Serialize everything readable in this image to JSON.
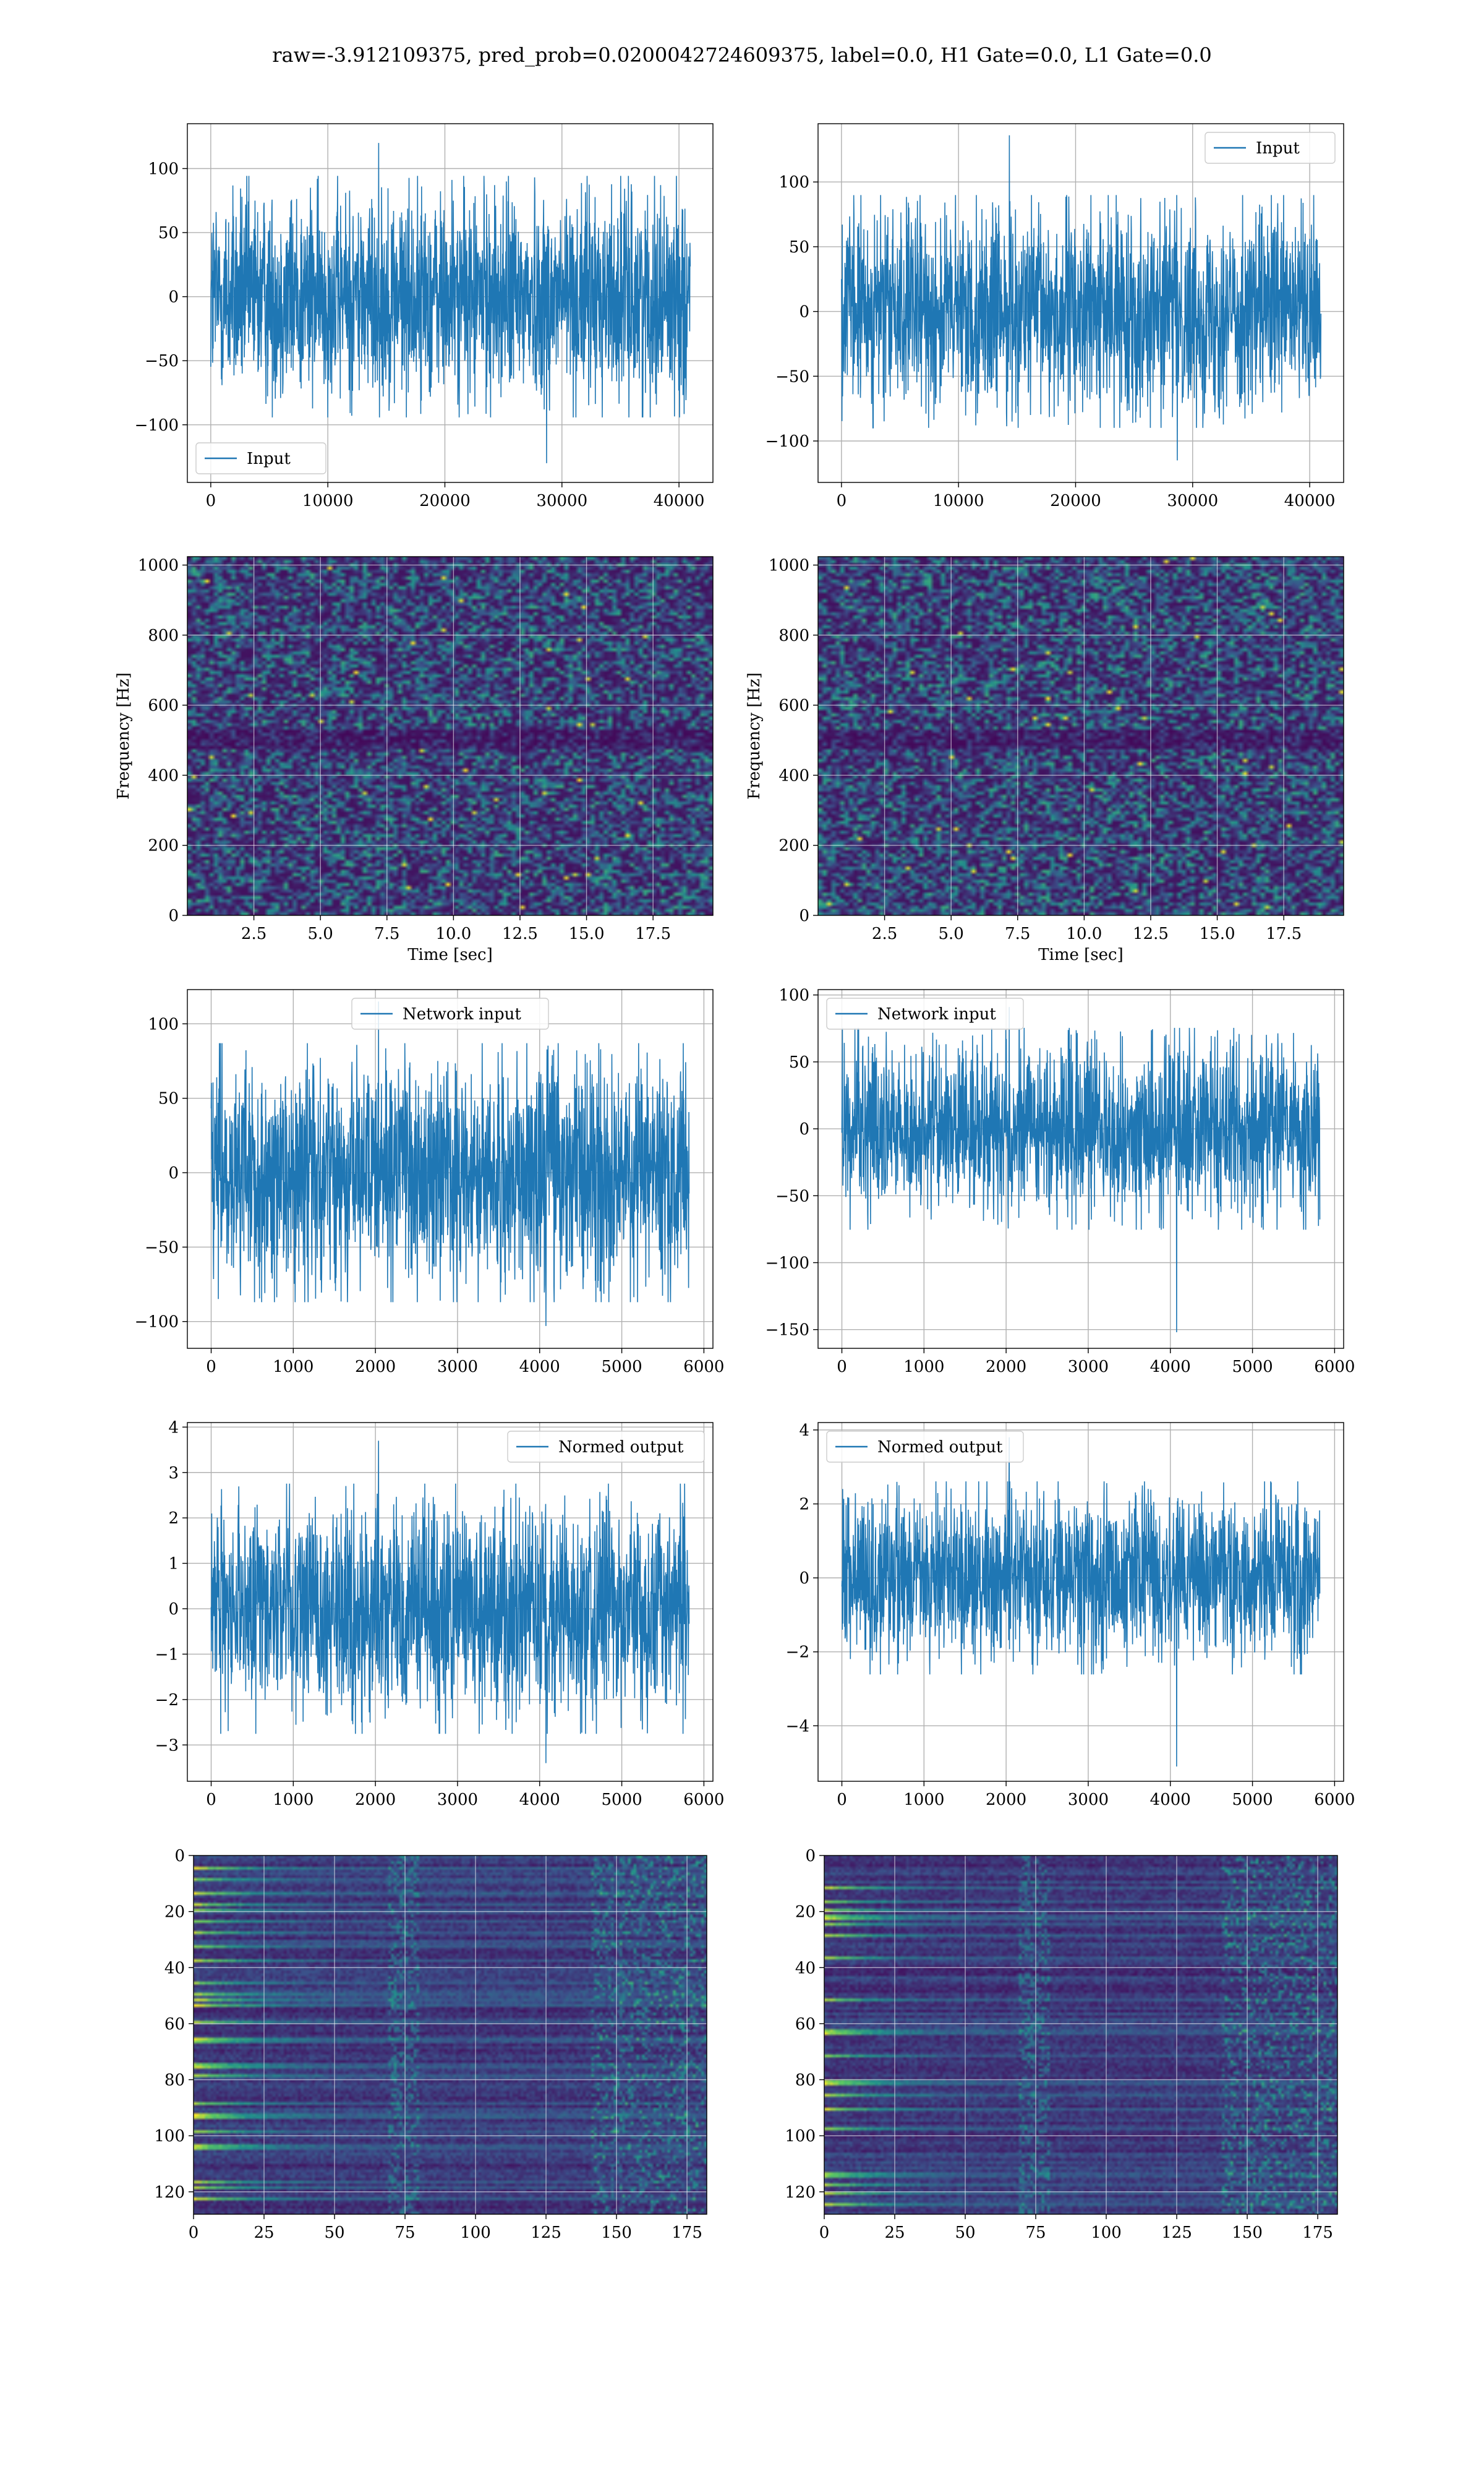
{
  "figure": {
    "title": "raw=-3.912109375, pred_prob=0.0200042724609375, label=0.0, H1 Gate=0.0, L1 Gate=0.0"
  },
  "colors": {
    "series": "#1f77b4",
    "viridis": [
      "#440154",
      "#3b528b",
      "#21918c",
      "#5ec962",
      "#fde725"
    ]
  },
  "chart_data": [
    {
      "type": "line",
      "panel": "row1-left",
      "xlim": [
        -2000,
        42900
      ],
      "ylim": [
        -145,
        135
      ],
      "xticks": [
        0,
        10000,
        20000,
        30000,
        40000
      ],
      "yticks": [
        -100,
        -50,
        0,
        50,
        100
      ],
      "xticklabels": [
        "0",
        "10000",
        "20000",
        "30000",
        "40000"
      ],
      "yticklabels": [
        "−100",
        "−50",
        "0",
        "50",
        "100"
      ],
      "series": [
        {
          "name": "Input",
          "x_range": [
            0,
            40960
          ],
          "typical_amplitude": 65,
          "max": 120,
          "min": -130
        }
      ],
      "legend": "lower left",
      "grid": true
    },
    {
      "type": "line",
      "panel": "row1-right",
      "xlim": [
        -2000,
        42900
      ],
      "ylim": [
        -132,
        145
      ],
      "xticks": [
        0,
        10000,
        20000,
        30000,
        40000
      ],
      "yticks": [
        -100,
        -50,
        0,
        50,
        100
      ],
      "xticklabels": [
        "0",
        "10000",
        "20000",
        "30000",
        "40000"
      ],
      "yticklabels": [
        "−100",
        "−50",
        "0",
        "50",
        "100"
      ],
      "series": [
        {
          "name": "Input",
          "x_range": [
            0,
            40960
          ],
          "typical_amplitude": 62,
          "max": 136,
          "min": -115
        }
      ],
      "legend": "upper right",
      "grid": true
    },
    {
      "type": "heatmap",
      "panel": "row2-left",
      "xlim": [
        0,
        19.75
      ],
      "ylim": [
        0,
        1024
      ],
      "xticks": [
        2.5,
        5.0,
        7.5,
        10.0,
        12.5,
        15.0,
        17.5
      ],
      "yticks": [
        0,
        200,
        400,
        600,
        800,
        1000
      ],
      "xticklabels": [
        "2.5",
        "5.0",
        "7.5",
        "10.0",
        "12.5",
        "15.0",
        "17.5"
      ],
      "yticklabels": [
        "0",
        "200",
        "400",
        "600",
        "800",
        "1000"
      ],
      "xlabel": "Time [sec]",
      "ylabel": "Frequency [Hz]",
      "colormap": "viridis",
      "grid": true
    },
    {
      "type": "heatmap",
      "panel": "row2-right",
      "xlim": [
        0,
        19.75
      ],
      "ylim": [
        0,
        1024
      ],
      "xticks": [
        2.5,
        5.0,
        7.5,
        10.0,
        12.5,
        15.0,
        17.5
      ],
      "yticks": [
        0,
        200,
        400,
        600,
        800,
        1000
      ],
      "xticklabels": [
        "2.5",
        "5.0",
        "7.5",
        "10.0",
        "12.5",
        "15.0",
        "17.5"
      ],
      "yticklabels": [
        "0",
        "200",
        "400",
        "600",
        "800",
        "1000"
      ],
      "xlabel": "Time [sec]",
      "ylabel": "Frequency [Hz]",
      "colormap": "viridis",
      "grid": true
    },
    {
      "type": "line",
      "panel": "row3-left",
      "xlim": [
        -290,
        6110
      ],
      "ylim": [
        -118,
        123
      ],
      "xticks": [
        0,
        1000,
        2000,
        3000,
        4000,
        5000,
        6000
      ],
      "yticks": [
        -100,
        -50,
        0,
        50,
        100
      ],
      "xticklabels": [
        "0",
        "1000",
        "2000",
        "3000",
        "4000",
        "5000",
        "6000"
      ],
      "yticklabels": [
        "−100",
        "−50",
        "0",
        "50",
        "100"
      ],
      "series": [
        {
          "name": "Network input",
          "x_range": [
            0,
            5820
          ],
          "typical_amplitude": 60,
          "max": 115,
          "min": -103
        }
      ],
      "legend": "upper center",
      "grid": true
    },
    {
      "type": "line",
      "panel": "row3-right",
      "xlim": [
        -290,
        6110
      ],
      "ylim": [
        -164,
        104
      ],
      "xticks": [
        0,
        1000,
        2000,
        3000,
        4000,
        5000,
        6000
      ],
      "yticks": [
        -150,
        -100,
        -50,
        0,
        50,
        100
      ],
      "xticklabels": [
        "0",
        "1000",
        "2000",
        "3000",
        "4000",
        "5000",
        "6000"
      ],
      "yticklabels": [
        "−150",
        "−100",
        "−50",
        "0",
        "50",
        "100"
      ],
      "series": [
        {
          "name": "Network input",
          "x_range": [
            0,
            5820
          ],
          "typical_amplitude": 52,
          "max": 91,
          "min": -152
        }
      ],
      "legend": "upper left",
      "grid": true
    },
    {
      "type": "line",
      "panel": "row4-left",
      "xlim": [
        -290,
        6110
      ],
      "ylim": [
        -3.8,
        4.1
      ],
      "xticks": [
        0,
        1000,
        2000,
        3000,
        4000,
        5000,
        6000
      ],
      "yticks": [
        -3,
        -2,
        -1,
        0,
        1,
        2,
        3,
        4
      ],
      "xticklabels": [
        "0",
        "1000",
        "2000",
        "3000",
        "4000",
        "5000",
        "6000"
      ],
      "yticklabels": [
        "−3",
        "−2",
        "−1",
        "0",
        "1",
        "2",
        "3",
        "4"
      ],
      "series": [
        {
          "name": "Normed output",
          "x_range": [
            0,
            5820
          ],
          "typical_amplitude": 1.9,
          "max": 3.7,
          "min": -3.4
        }
      ],
      "legend": "upper right",
      "grid": true
    },
    {
      "type": "line",
      "panel": "row4-right",
      "xlim": [
        -290,
        6110
      ],
      "ylim": [
        -5.5,
        4.2
      ],
      "xticks": [
        0,
        1000,
        2000,
        3000,
        4000,
        5000,
        6000
      ],
      "yticks": [
        -4,
        -2,
        0,
        2,
        4
      ],
      "xticklabels": [
        "0",
        "1000",
        "2000",
        "3000",
        "4000",
        "5000",
        "6000"
      ],
      "yticklabels": [
        "−4",
        "−2",
        "0",
        "2",
        "4"
      ],
      "series": [
        {
          "name": "Normed output",
          "x_range": [
            0,
            5820
          ],
          "typical_amplitude": 1.8,
          "max": 3.8,
          "min": -5.1
        }
      ],
      "legend": "upper left",
      "grid": true
    },
    {
      "type": "heatmap",
      "panel": "row5-left",
      "xlim": [
        0,
        182
      ],
      "ylim": [
        128,
        0
      ],
      "xticks": [
        0,
        25,
        50,
        75,
        100,
        125,
        150,
        175
      ],
      "yticks": [
        0,
        20,
        40,
        60,
        80,
        100,
        120
      ],
      "xticklabels": [
        "0",
        "25",
        "50",
        "75",
        "100",
        "125",
        "150",
        "175"
      ],
      "yticklabels": [
        "0",
        "20",
        "40",
        "60",
        "80",
        "100",
        "120"
      ],
      "colormap": "viridis",
      "grid": true
    },
    {
      "type": "heatmap",
      "panel": "row5-right",
      "xlim": [
        0,
        182
      ],
      "ylim": [
        128,
        0
      ],
      "xticks": [
        0,
        25,
        50,
        75,
        100,
        125,
        150,
        175
      ],
      "yticks": [
        0,
        20,
        40,
        60,
        80,
        100,
        120
      ],
      "xticklabels": [
        "0",
        "25",
        "50",
        "75",
        "100",
        "125",
        "150",
        "175"
      ],
      "yticklabels": [
        "0",
        "20",
        "40",
        "60",
        "80",
        "100",
        "120"
      ],
      "colormap": "viridis",
      "grid": true
    }
  ]
}
